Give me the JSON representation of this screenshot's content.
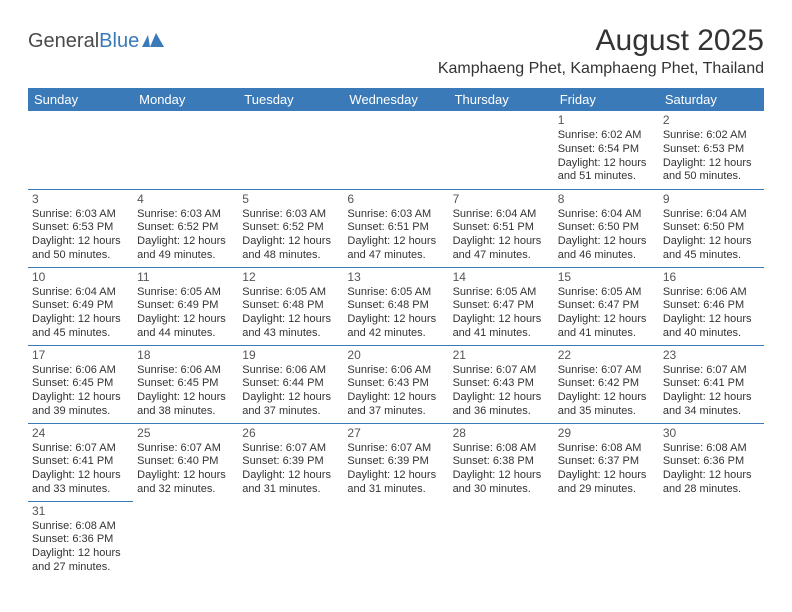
{
  "logo": {
    "text1": "General",
    "text2": "Blue",
    "color_gray": "#4a4a4a",
    "color_blue": "#3a7ab8"
  },
  "title": "August 2025",
  "location": "Kamphaeng Phet, Kamphaeng Phet, Thailand",
  "day_headers": [
    "Sunday",
    "Monday",
    "Tuesday",
    "Wednesday",
    "Thursday",
    "Friday",
    "Saturday"
  ],
  "header_bg": "#3a7ab8",
  "header_fg": "#ffffff",
  "border_color": "#3a7ab8",
  "title_fontsize": 30,
  "location_fontsize": 16,
  "header_fontsize": 13,
  "cell_fontsize": 11,
  "weeks": [
    [
      null,
      null,
      null,
      null,
      null,
      {
        "d": "1",
        "sr": "6:02 AM",
        "ss": "6:54 PM",
        "dl": "12 hours and 51 minutes."
      },
      {
        "d": "2",
        "sr": "6:02 AM",
        "ss": "6:53 PM",
        "dl": "12 hours and 50 minutes."
      }
    ],
    [
      {
        "d": "3",
        "sr": "6:03 AM",
        "ss": "6:53 PM",
        "dl": "12 hours and 50 minutes."
      },
      {
        "d": "4",
        "sr": "6:03 AM",
        "ss": "6:52 PM",
        "dl": "12 hours and 49 minutes."
      },
      {
        "d": "5",
        "sr": "6:03 AM",
        "ss": "6:52 PM",
        "dl": "12 hours and 48 minutes."
      },
      {
        "d": "6",
        "sr": "6:03 AM",
        "ss": "6:51 PM",
        "dl": "12 hours and 47 minutes."
      },
      {
        "d": "7",
        "sr": "6:04 AM",
        "ss": "6:51 PM",
        "dl": "12 hours and 47 minutes."
      },
      {
        "d": "8",
        "sr": "6:04 AM",
        "ss": "6:50 PM",
        "dl": "12 hours and 46 minutes."
      },
      {
        "d": "9",
        "sr": "6:04 AM",
        "ss": "6:50 PM",
        "dl": "12 hours and 45 minutes."
      }
    ],
    [
      {
        "d": "10",
        "sr": "6:04 AM",
        "ss": "6:49 PM",
        "dl": "12 hours and 45 minutes."
      },
      {
        "d": "11",
        "sr": "6:05 AM",
        "ss": "6:49 PM",
        "dl": "12 hours and 44 minutes."
      },
      {
        "d": "12",
        "sr": "6:05 AM",
        "ss": "6:48 PM",
        "dl": "12 hours and 43 minutes."
      },
      {
        "d": "13",
        "sr": "6:05 AM",
        "ss": "6:48 PM",
        "dl": "12 hours and 42 minutes."
      },
      {
        "d": "14",
        "sr": "6:05 AM",
        "ss": "6:47 PM",
        "dl": "12 hours and 41 minutes."
      },
      {
        "d": "15",
        "sr": "6:05 AM",
        "ss": "6:47 PM",
        "dl": "12 hours and 41 minutes."
      },
      {
        "d": "16",
        "sr": "6:06 AM",
        "ss": "6:46 PM",
        "dl": "12 hours and 40 minutes."
      }
    ],
    [
      {
        "d": "17",
        "sr": "6:06 AM",
        "ss": "6:45 PM",
        "dl": "12 hours and 39 minutes."
      },
      {
        "d": "18",
        "sr": "6:06 AM",
        "ss": "6:45 PM",
        "dl": "12 hours and 38 minutes."
      },
      {
        "d": "19",
        "sr": "6:06 AM",
        "ss": "6:44 PM",
        "dl": "12 hours and 37 minutes."
      },
      {
        "d": "20",
        "sr": "6:06 AM",
        "ss": "6:43 PM",
        "dl": "12 hours and 37 minutes."
      },
      {
        "d": "21",
        "sr": "6:07 AM",
        "ss": "6:43 PM",
        "dl": "12 hours and 36 minutes."
      },
      {
        "d": "22",
        "sr": "6:07 AM",
        "ss": "6:42 PM",
        "dl": "12 hours and 35 minutes."
      },
      {
        "d": "23",
        "sr": "6:07 AM",
        "ss": "6:41 PM",
        "dl": "12 hours and 34 minutes."
      }
    ],
    [
      {
        "d": "24",
        "sr": "6:07 AM",
        "ss": "6:41 PM",
        "dl": "12 hours and 33 minutes."
      },
      {
        "d": "25",
        "sr": "6:07 AM",
        "ss": "6:40 PM",
        "dl": "12 hours and 32 minutes."
      },
      {
        "d": "26",
        "sr": "6:07 AM",
        "ss": "6:39 PM",
        "dl": "12 hours and 31 minutes."
      },
      {
        "d": "27",
        "sr": "6:07 AM",
        "ss": "6:39 PM",
        "dl": "12 hours and 31 minutes."
      },
      {
        "d": "28",
        "sr": "6:08 AM",
        "ss": "6:38 PM",
        "dl": "12 hours and 30 minutes."
      },
      {
        "d": "29",
        "sr": "6:08 AM",
        "ss": "6:37 PM",
        "dl": "12 hours and 29 minutes."
      },
      {
        "d": "30",
        "sr": "6:08 AM",
        "ss": "6:36 PM",
        "dl": "12 hours and 28 minutes."
      }
    ],
    [
      {
        "d": "31",
        "sr": "6:08 AM",
        "ss": "6:36 PM",
        "dl": "12 hours and 27 minutes."
      },
      null,
      null,
      null,
      null,
      null,
      null
    ]
  ],
  "labels": {
    "sunrise": "Sunrise:",
    "sunset": "Sunset:",
    "daylight": "Daylight:"
  }
}
